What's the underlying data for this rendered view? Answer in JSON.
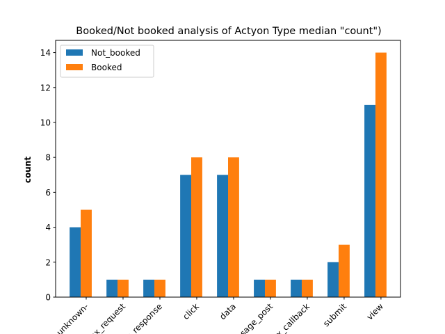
{
  "chart_data": {
    "type": "bar",
    "title": "Booked/Not booked analysis of Actyon Type median \"count\")",
    "xlabel": "",
    "ylabel": "count",
    "categories": [
      "-unknown-",
      "ajax_request",
      "ajax_response",
      "click",
      "data",
      "message_post",
      "ajax_callback",
      "submit",
      "view"
    ],
    "series": [
      {
        "name": "Not_booked",
        "color": "#1f77b4",
        "values": [
          4,
          1,
          1,
          7,
          7,
          1,
          1,
          2,
          11
        ]
      },
      {
        "name": "Booked",
        "color": "#ff7f0e",
        "values": [
          5,
          1,
          1,
          8,
          8,
          1,
          1,
          3,
          14
        ]
      }
    ],
    "ylim": [
      0,
      14.7
    ],
    "yticks": [
      0,
      2,
      4,
      6,
      8,
      10,
      12,
      14
    ],
    "grid": false,
    "legend_position": "top-left"
  }
}
